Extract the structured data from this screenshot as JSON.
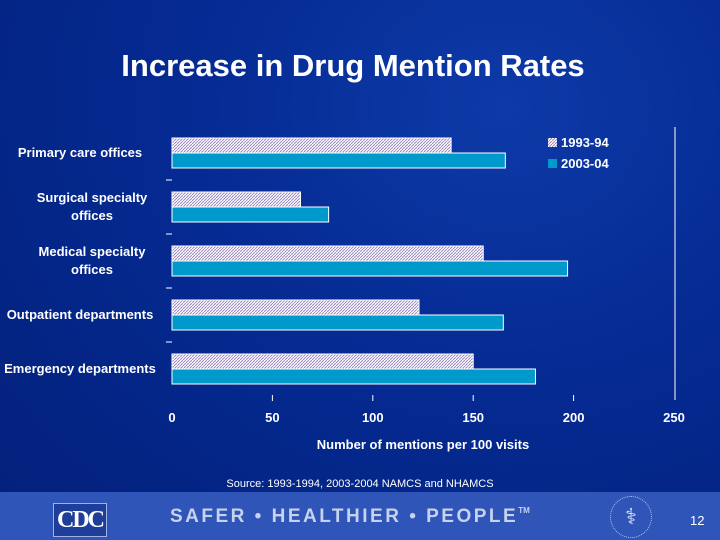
{
  "title": "Increase in Drug Mention Rates",
  "chart_data": {
    "type": "bar",
    "orientation": "horizontal",
    "categories": [
      "Primary care offices",
      "Surgical specialty offices",
      "Medical specialty offices",
      "Outpatient departments",
      "Emergency departments"
    ],
    "series": [
      {
        "name": "1993-94",
        "values": [
          139,
          64,
          155,
          123,
          150
        ],
        "color": "#d9d2e8",
        "pattern": "hatched"
      },
      {
        "name": "2003-04",
        "values": [
          166,
          78,
          197,
          165,
          181
        ],
        "color": "#0099cc"
      }
    ],
    "xlabel": "Number of mentions per 100 visits",
    "xlim": [
      0,
      250
    ],
    "xticks": [
      0,
      50,
      100,
      150,
      200,
      250
    ],
    "legend": "top-right",
    "grid": false
  },
  "source": "Source: 1993-1994, 2003-2004 NAMCS and NHAMCS",
  "footer": {
    "logo": "CDC",
    "slogan": "SAFER • HEALTHIER • PEOPLE",
    "trademark": "TM",
    "page_number": "12"
  }
}
